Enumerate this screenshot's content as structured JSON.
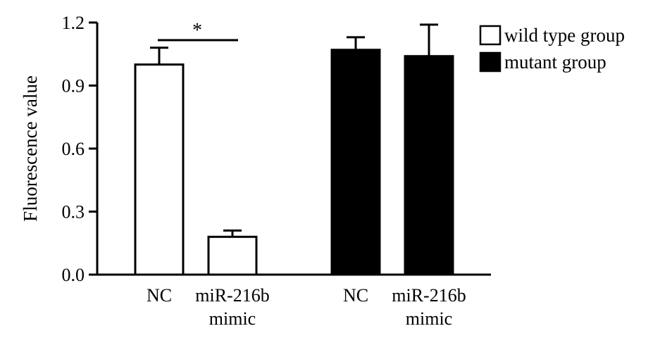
{
  "chart_data": {
    "type": "bar",
    "title": "",
    "xlabel": "",
    "ylabel": "Fluorescence value",
    "ylim": [
      0,
      1.2
    ],
    "yticks": [
      "0.0",
      "0.3",
      "0.6",
      "0.9",
      "1.2"
    ],
    "categories": [
      {
        "label_lines": [
          "NC"
        ]
      },
      {
        "label_lines": [
          "miR-216b",
          "mimic"
        ]
      },
      {
        "label_lines": [
          "NC"
        ]
      },
      {
        "label_lines": [
          "miR-216b",
          "mimic"
        ]
      }
    ],
    "bars": [
      {
        "series": "wild type group",
        "value": 1.0,
        "error": 0.08
      },
      {
        "series": "wild type group",
        "value": 0.18,
        "error": 0.03
      },
      {
        "series": "mutant group",
        "value": 1.07,
        "error": 0.06
      },
      {
        "series": "mutant group",
        "value": 1.04,
        "error": 0.15
      }
    ],
    "series": [
      {
        "name": "wild type group",
        "fill": "#ffffff"
      },
      {
        "name": "mutant group",
        "fill": "#000000"
      }
    ],
    "annotations": [
      {
        "text": "*",
        "between": [
          0,
          1
        ]
      }
    ],
    "legend_position": "top-right",
    "grid": false
  }
}
